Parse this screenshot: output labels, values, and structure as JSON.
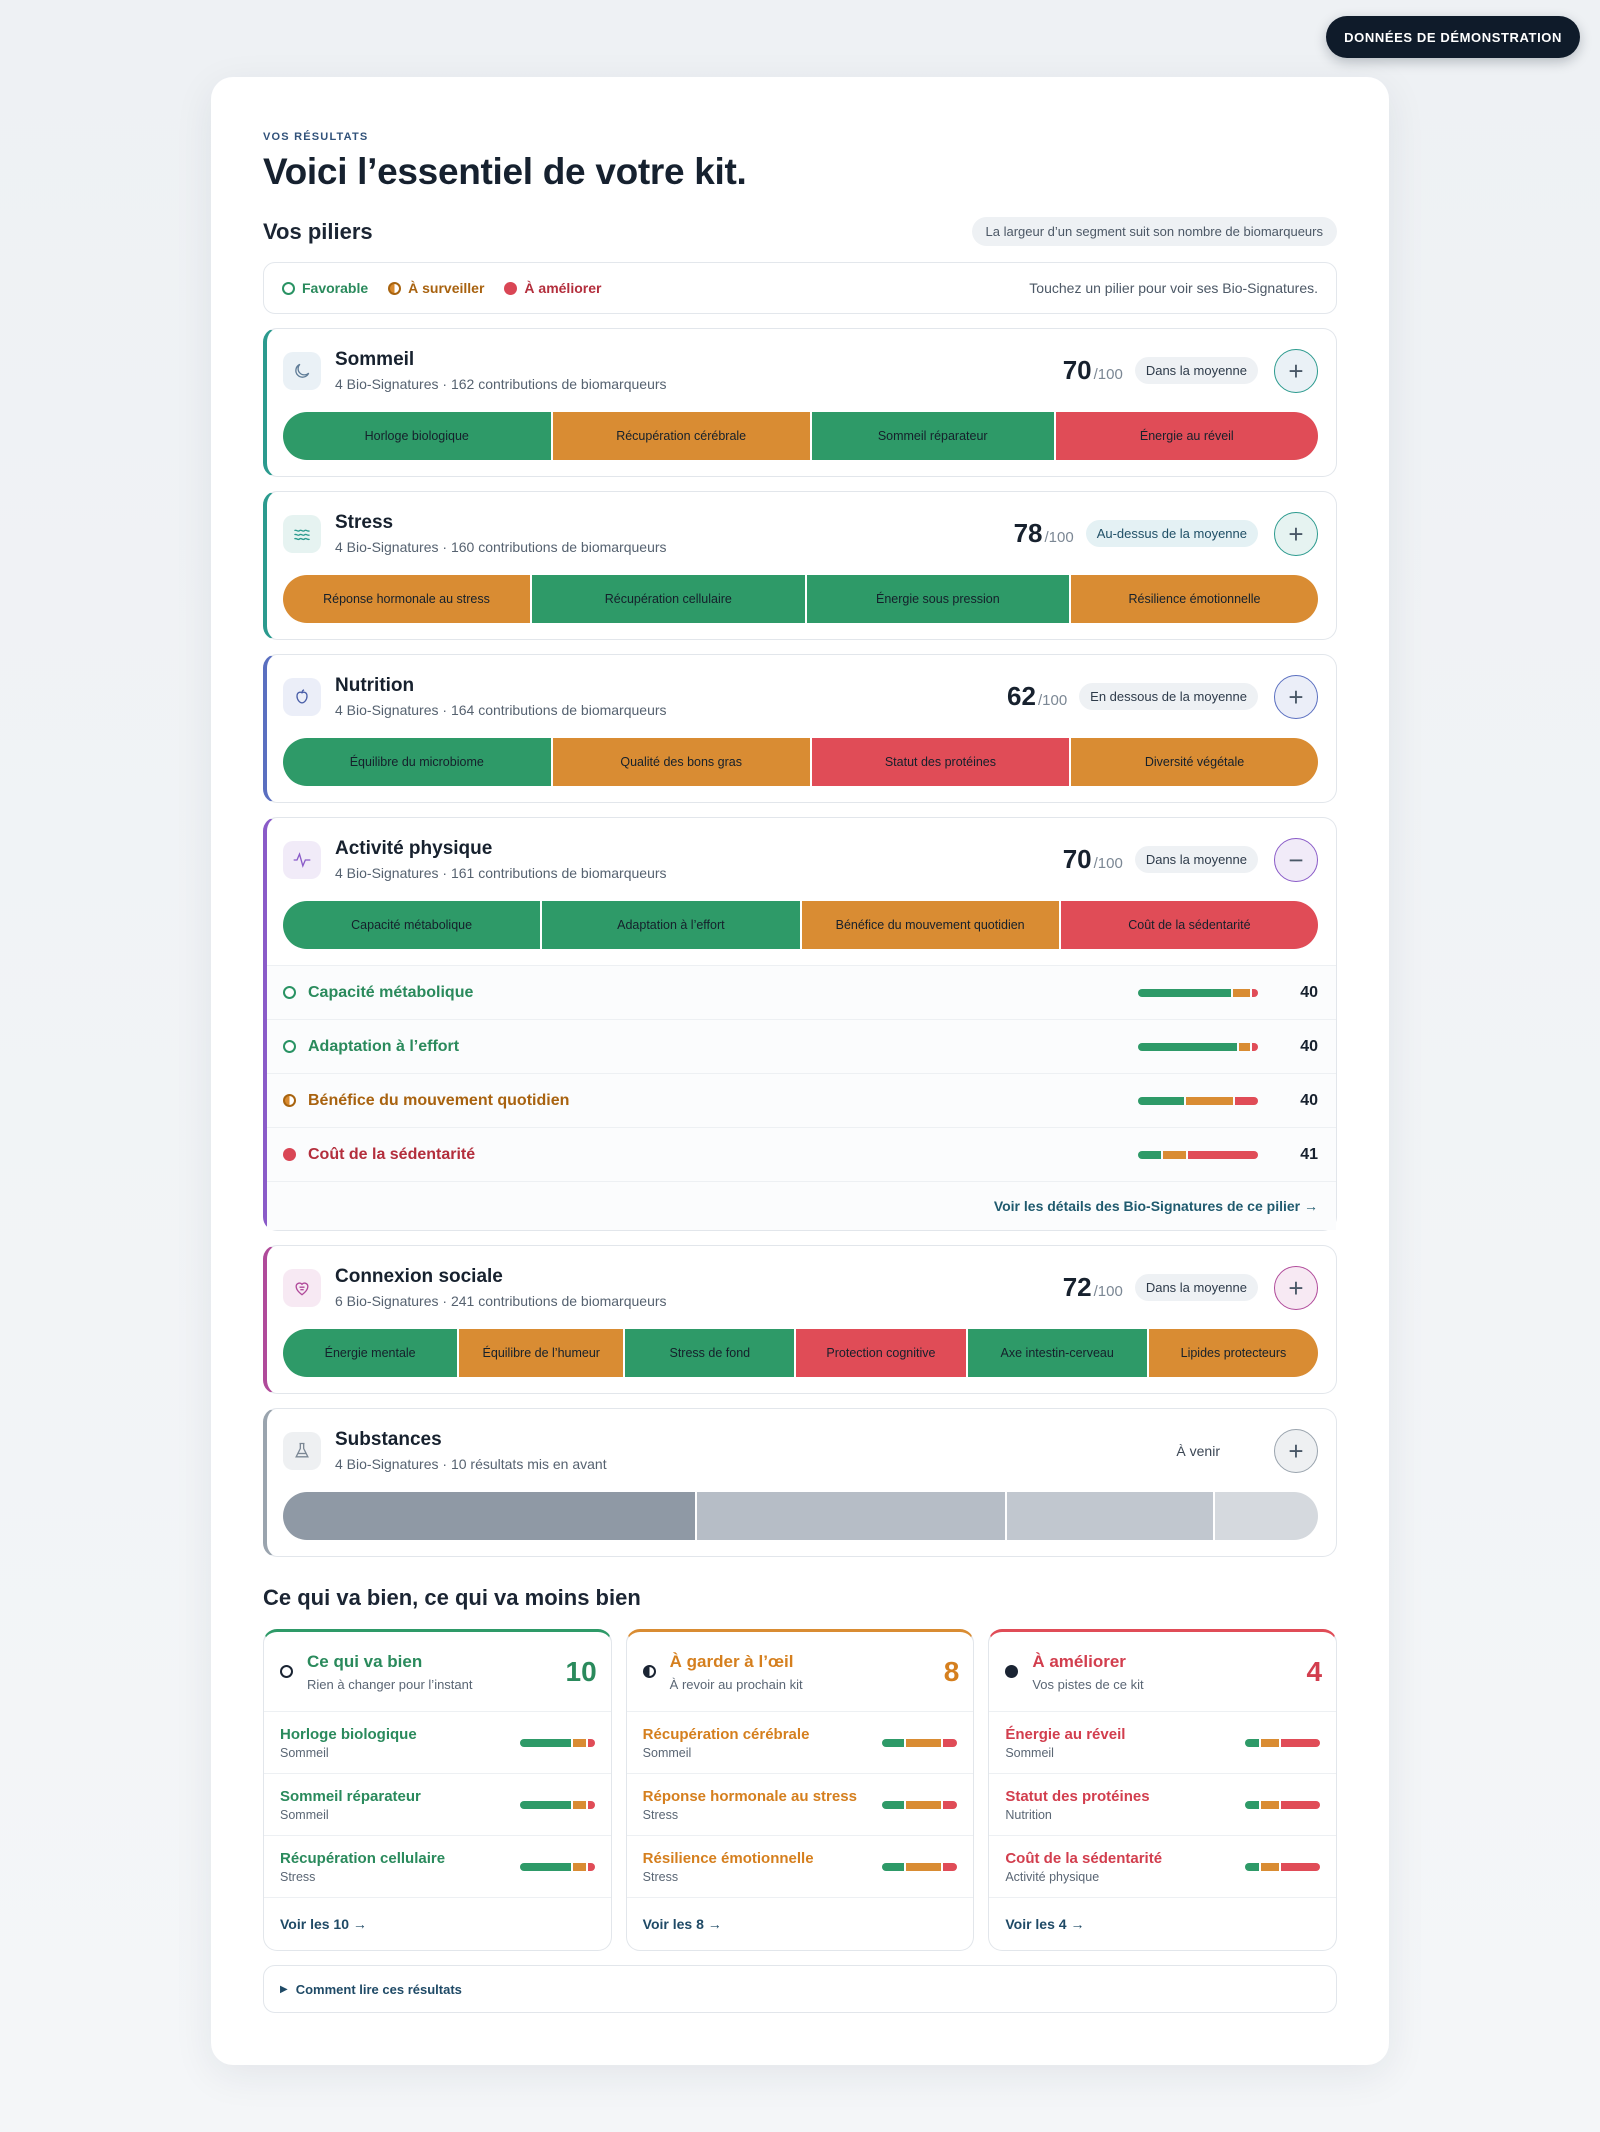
{
  "demo_badge": "DONNÉES DE DÉMONSTRATION",
  "eyebrow": "VOS RÉSULTATS",
  "headline": "Voici l’essentiel de votre kit.",
  "pillars_section": {
    "title": "Vos piliers",
    "width_note": "La largeur d’un segment suit son nombre de biomarqueurs"
  },
  "legend": {
    "favorable": "Favorable",
    "surveiller": "À surveiller",
    "ameliorer": "À améliorer",
    "hint": "Touchez un pilier pour voir ses Bio-Signatures."
  },
  "colors": {
    "favorable": "#2e9a68",
    "surveiller": "#d98c33",
    "ameliorer": "#e04c57"
  },
  "pillars": [
    {
      "name": "Sommeil",
      "icon": "moon-icon",
      "accent": "#2b9a8e",
      "subtitle": "4 Bio-Signatures · 162 contributions de biomarqueurs",
      "score": "70",
      "score_max": "/100",
      "badge": "Dans la moyenne",
      "toggle": "+",
      "segments": [
        {
          "label": "Horloge biologique",
          "status": "favorable",
          "weight": 26
        },
        {
          "label": "Récupération cérébrale",
          "status": "surveiller",
          "weight": 25
        },
        {
          "label": "Sommeil réparateur",
          "status": "favorable",
          "weight": 23.5
        },
        {
          "label": "Énergie au réveil",
          "status": "ameliorer",
          "weight": 25.5
        }
      ]
    },
    {
      "name": "Stress",
      "icon": "waves-icon",
      "accent": "#2b9a8e",
      "subtitle": "4 Bio-Signatures · 160 contributions de biomarqueurs",
      "score": "78",
      "score_max": "/100",
      "badge": "Au-dessus de la moyenne",
      "toggle": "+",
      "segments": [
        {
          "label": "Réponse hormonale au stress",
          "status": "surveiller",
          "weight": 24
        },
        {
          "label": "Récupération cellulaire",
          "status": "favorable",
          "weight": 26.5
        },
        {
          "label": "Énergie sous pression",
          "status": "favorable",
          "weight": 25.5
        },
        {
          "label": "Résilience émotionnelle",
          "status": "surveiller",
          "weight": 24
        }
      ]
    },
    {
      "name": "Nutrition",
      "icon": "apple-icon",
      "accent": "#5a6fc0",
      "subtitle": "4 Bio-Signatures · 164 contributions de biomarqueurs",
      "score": "62",
      "score_max": "/100",
      "badge": "En dessous de la moyenne",
      "toggle": "+",
      "segments": [
        {
          "label": "Équilibre du microbiome",
          "status": "favorable",
          "weight": 26
        },
        {
          "label": "Qualité des bons gras",
          "status": "surveiller",
          "weight": 25
        },
        {
          "label": "Statut des protéines",
          "status": "ameliorer",
          "weight": 25
        },
        {
          "label": "Diversité végétale",
          "status": "surveiller",
          "weight": 24
        }
      ]
    },
    {
      "name": "Activité physique",
      "icon": "pulse-icon",
      "accent": "#8a5bc8",
      "subtitle": "4 Bio-Signatures · 161 contributions de biomarqueurs",
      "score": "70",
      "score_max": "/100",
      "badge": "Dans la moyenne",
      "toggle": "−",
      "segments": [
        {
          "label": "Capacité métabolique",
          "status": "favorable",
          "weight": 25
        },
        {
          "label": "Adaptation à l’effort",
          "status": "favorable",
          "weight": 25
        },
        {
          "label": "Bénéfice du mouvement quotidien",
          "status": "surveiller",
          "weight": 25
        },
        {
          "label": "Coût de la sédentarité",
          "status": "ameliorer",
          "weight": 25
        }
      ],
      "details": [
        {
          "name": "Capacité métabolique",
          "status": "favorable",
          "value": "40",
          "dist": [
            0.8,
            0.15,
            0.05
          ]
        },
        {
          "name": "Adaptation à l’effort",
          "status": "favorable",
          "value": "40",
          "dist": [
            0.85,
            0.1,
            0.05
          ]
        },
        {
          "name": "Bénéfice du mouvement quotidien",
          "status": "surveiller",
          "value": "40",
          "dist": [
            0.4,
            0.4,
            0.2
          ]
        },
        {
          "name": "Coût de la sédentarité",
          "status": "ameliorer",
          "value": "41",
          "dist": [
            0.2,
            0.2,
            0.6
          ]
        }
      ],
      "details_link": "Voir les détails des Bio-Signatures de ce pilier →"
    },
    {
      "name": "Connexion sociale",
      "icon": "heart-brain-icon",
      "accent": "#b04a9a",
      "subtitle": "6 Bio-Signatures · 241 contributions de biomarqueurs",
      "score": "72",
      "score_max": "/100",
      "badge": "Dans la moyenne",
      "toggle": "+",
      "segments": [
        {
          "label": "Énergie mentale",
          "status": "favorable",
          "weight": 17
        },
        {
          "label": "Équilibre de l’humeur",
          "status": "surveiller",
          "weight": 16
        },
        {
          "label": "Stress de fond",
          "status": "favorable",
          "weight": 16.5
        },
        {
          "label": "Protection cognitive",
          "status": "ameliorer",
          "weight": 16.5
        },
        {
          "label": "Axe intestin-cerveau",
          "status": "favorable",
          "weight": 17.5
        },
        {
          "label": "Lipides protecteurs",
          "status": "surveiller",
          "weight": 16.5
        }
      ]
    },
    {
      "name": "Substances",
      "icon": "flask-icon",
      "accent": "#9aa4ae",
      "subtitle": "4 Bio-Signatures · 10 résultats mis en avant",
      "soon": "À venir",
      "toggle": "+",
      "segments": [
        {
          "label": "",
          "status": "g1",
          "weight": 40
        },
        {
          "label": "",
          "status": "g2",
          "weight": 30
        },
        {
          "label": "",
          "status": "g3",
          "weight": 20
        },
        {
          "label": "",
          "status": "g4",
          "weight": 10
        }
      ]
    }
  ],
  "summary": {
    "title": "Ce qui va bien, ce qui va moins bien",
    "columns": [
      {
        "title": "Ce qui va bien",
        "subtitle": "Rien à changer pour l’instant",
        "count": "10",
        "kind": "fav",
        "dot": "dot-blk-o",
        "accent": "#2e9a68",
        "items": [
          {
            "name": "Horloge biologique",
            "pillar": "Sommeil",
            "dist": [
              0.72,
              0.18,
              0.1
            ]
          },
          {
            "name": "Sommeil réparateur",
            "pillar": "Sommeil",
            "dist": [
              0.72,
              0.18,
              0.1
            ]
          },
          {
            "name": "Récupération cellulaire",
            "pillar": "Stress",
            "dist": [
              0.72,
              0.18,
              0.1
            ]
          }
        ],
        "link": "Voir les 10 →"
      },
      {
        "title": "À garder à l’œil",
        "subtitle": "À revoir au prochain kit",
        "count": "8",
        "kind": "sur",
        "dot": "dot-blk-h",
        "accent": "#d98c33",
        "items": [
          {
            "name": "Récupération cérébrale",
            "pillar": "Sommeil",
            "dist": [
              0.3,
              0.5,
              0.2
            ]
          },
          {
            "name": "Réponse hormonale au stress",
            "pillar": "Stress",
            "dist": [
              0.3,
              0.5,
              0.2
            ]
          },
          {
            "name": "Résilience émotionnelle",
            "pillar": "Stress",
            "dist": [
              0.3,
              0.5,
              0.2
            ]
          }
        ],
        "link": "Voir les 8 →"
      },
      {
        "title": "À améliorer",
        "subtitle": "Vos pistes de ce kit",
        "count": "4",
        "kind": "ame",
        "dot": "dot-blk-f",
        "accent": "#e04c57",
        "items": [
          {
            "name": "Énergie au réveil",
            "pillar": "Sommeil",
            "dist": [
              0.2,
              0.25,
              0.55
            ]
          },
          {
            "name": "Statut des protéines",
            "pillar": "Nutrition",
            "dist": [
              0.2,
              0.25,
              0.55
            ]
          },
          {
            "name": "Coût de la sédentarité",
            "pillar": "Activité physique",
            "dist": [
              0.2,
              0.25,
              0.55
            ]
          }
        ],
        "link": "Voir les 4 →"
      }
    ]
  },
  "howto": "Comment lire ces résultats"
}
